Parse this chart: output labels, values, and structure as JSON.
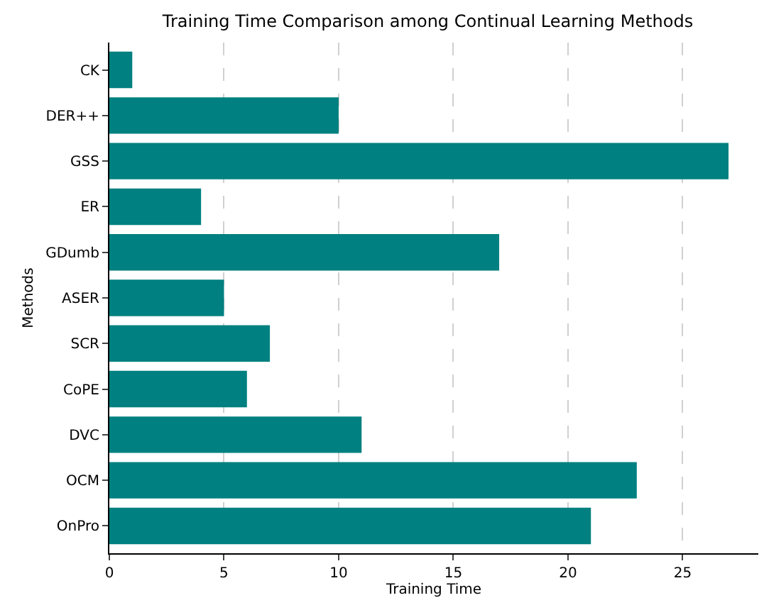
{
  "chart_data": {
    "type": "bar",
    "orientation": "horizontal",
    "title": "Training Time Comparison among Continual Learning Methods",
    "xlabel": "Training Time",
    "ylabel": "Methods",
    "categories": [
      "CK",
      "DER++",
      "GSS",
      "ER",
      "GDumb",
      "ASER",
      "SCR",
      "CoPE",
      "DVC",
      "OCM",
      "OnPro"
    ],
    "values": [
      1,
      10,
      27,
      4,
      17,
      5,
      7,
      6,
      11,
      23,
      21
    ],
    "color": "#008080",
    "xlim": [
      0,
      28.3
    ],
    "xticks": [
      0,
      5,
      10,
      15,
      20,
      25
    ],
    "grid": "x",
    "legend": false
  }
}
